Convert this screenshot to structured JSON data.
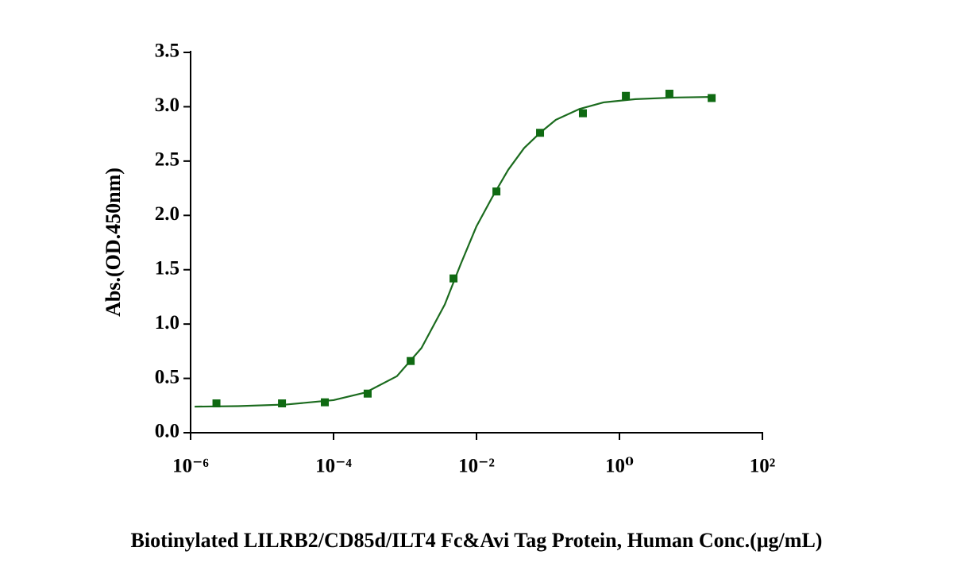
{
  "chart_data": {
    "type": "scatter",
    "xlabel": "Biotinylated LILRB2/CD85d/ILT4 Fc&Avi Tag Protein, Human Conc.(μg/mL)",
    "ylabel": "Abs.(OD.450nm)",
    "xscale": "log",
    "xlim": [
      1e-06,
      100
    ],
    "xticks": [
      {
        "value": 1e-06,
        "label": "10⁻⁶"
      },
      {
        "value": 0.0001,
        "label": "10⁻⁴"
      },
      {
        "value": 0.01,
        "label": "10⁻²"
      },
      {
        "value": 1,
        "label": "10⁰"
      },
      {
        "value": 100,
        "label": "10²"
      }
    ],
    "ylim": [
      0,
      3.5
    ],
    "yticks": [
      {
        "value": 0,
        "label": "0.0"
      },
      0.5,
      {
        "value": 1,
        "label": "1.0"
      },
      1.5,
      {
        "value": 2,
        "label": "2.0"
      },
      2.5,
      {
        "value": 3,
        "label": "3.0"
      },
      3.5
    ],
    "grid": false,
    "series": [
      {
        "mode": "markers",
        "marker": "square",
        "color": "#0f6a12",
        "x": [
          2.3e-06,
          1.9e-05,
          7.55e-05,
          0.0003,
          0.0012,
          0.00477,
          0.019,
          0.0775,
          0.308,
          1.23,
          5.0,
          19.5
        ],
        "values": [
          0.27,
          0.27,
          0.28,
          0.36,
          0.66,
          1.42,
          2.22,
          2.76,
          2.94,
          3.1,
          3.12,
          3.08
        ]
      },
      {
        "mode": "line",
        "color": "#1b6b1e",
        "x": [
          1.14e-06,
          4.6e-06,
          2.2e-05,
          0.0001,
          0.00028,
          0.00077,
          0.0017,
          0.0036,
          0.006,
          0.01,
          0.0167,
          0.0278,
          0.0464,
          0.0774,
          0.129,
          0.278,
          0.6,
          1.67,
          6.0,
          19.5
        ],
        "values": [
          0.24,
          0.245,
          0.26,
          0.3,
          0.37,
          0.52,
          0.78,
          1.18,
          1.55,
          1.9,
          2.17,
          2.42,
          2.62,
          2.76,
          2.88,
          2.98,
          3.04,
          3.07,
          3.085,
          3.09
        ]
      }
    ]
  }
}
